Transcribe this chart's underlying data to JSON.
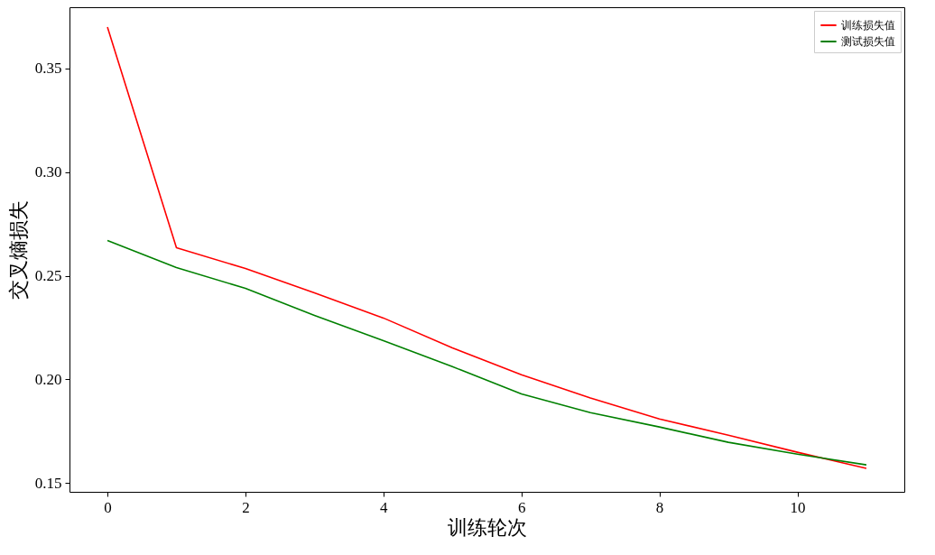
{
  "chart_data": {
    "type": "line",
    "xlabel": "训练轮次",
    "ylabel": "交叉熵损失",
    "x": [
      0,
      1,
      2,
      3,
      4,
      5,
      6,
      7,
      8,
      9,
      10,
      11
    ],
    "series": [
      {
        "name": "训练损失值",
        "color": "#ff0000",
        "values": [
          0.37,
          0.2635,
          0.2535,
          0.2417,
          0.2296,
          0.2152,
          0.2022,
          0.191,
          0.1809,
          0.173,
          0.1648,
          0.157
        ]
      },
      {
        "name": "测试损失值",
        "color": "#008000",
        "values": [
          0.267,
          0.2539,
          0.2439,
          0.2309,
          0.2187,
          0.2061,
          0.193,
          0.1839,
          0.177,
          0.1696,
          0.1639,
          0.1587
        ]
      }
    ],
    "xlim": [
      -0.55,
      11.55
    ],
    "ylim": [
      0.1457,
      0.3796
    ],
    "xticks": [
      0,
      2,
      4,
      6,
      8,
      10
    ],
    "yticks": [
      0.15,
      {
        "value": 0.2,
        "label": "0.20"
      },
      0.25,
      {
        "value": 0.3,
        "label": "0.30"
      },
      0.35
    ],
    "grid": false,
    "legend": "top right",
    "marker": "none",
    "line_style": "solid"
  }
}
